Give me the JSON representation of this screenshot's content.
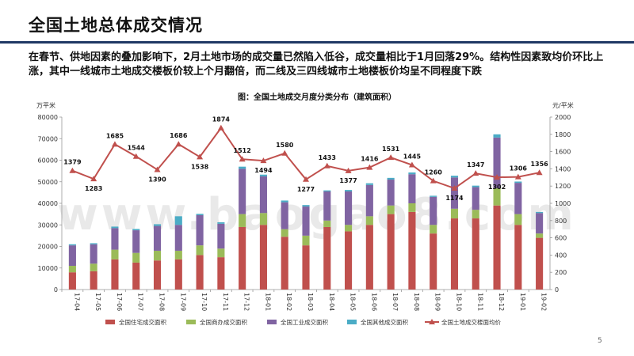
{
  "header": {
    "title": "全国土地总体成交情况",
    "subtitle": "在春节、供地因素的叠加影响下，2月土地市场的成交量已然陷入低谷，成交量相比于1月回落29%。结构性因素致均价环比上涨，其中一线城市土地成交楼板价较上个月翻倍，而二线及三四线城市土地楼板价均呈不同程度下跌"
  },
  "page_number": "5",
  "watermark": "www.baogao8.com",
  "chart_data": {
    "type": "bar",
    "stacked": true,
    "title": "图：全国土地成交月度分类分布（建筑面积）",
    "y_left_unit": "万平米",
    "y_right_unit": "元/平米",
    "y_left_range": [
      0,
      80000
    ],
    "y_left_ticks": [
      "0",
      "10000",
      "20000",
      "30000",
      "40000",
      "50000",
      "60000",
      "70000",
      "80000"
    ],
    "y_right_range": [
      0,
      2000
    ],
    "y_right_ticks": [
      "0",
      "200",
      "400",
      "600",
      "800",
      "1000",
      "1200",
      "1400",
      "1600",
      "1800",
      "2000"
    ],
    "categories": [
      "17-04",
      "17-05",
      "17-06",
      "17-07",
      "17-08",
      "17-09",
      "17-10",
      "17-11",
      "17-12",
      "18-01",
      "18-02",
      "18-03",
      "18-04",
      "18-05",
      "18-06",
      "18-07",
      "18-08",
      "18-09",
      "18-10",
      "18-11",
      "18-12",
      "19-01",
      "19-02"
    ],
    "series": [
      {
        "name": "全国住宅成交面积",
        "color": "#c0504d",
        "values": [
          8000,
          8500,
          14000,
          12500,
          13500,
          14000,
          16000,
          15000,
          29000,
          30000,
          24500,
          20500,
          29000,
          27000,
          30000,
          35000,
          36000,
          26000,
          33000,
          33000,
          39000,
          30000,
          24000
        ]
      },
      {
        "name": "全国商办成交面积",
        "color": "#9bbb59",
        "values": [
          3000,
          3500,
          4500,
          4500,
          4500,
          4000,
          4500,
          4000,
          6000,
          5500,
          3500,
          4500,
          3000,
          3000,
          4000,
          4000,
          4000,
          4000,
          4500,
          4000,
          8000,
          5000,
          2000
        ]
      },
      {
        "name": "全国工业成交面积",
        "color": "#8064a2",
        "values": [
          9500,
          9000,
          10000,
          10500,
          11500,
          12000,
          14000,
          11500,
          21000,
          17000,
          12500,
          13500,
          13500,
          15500,
          14500,
          12000,
          13500,
          13000,
          14500,
          10500,
          23500,
          14500,
          9500
        ]
      },
      {
        "name": "全国其他成交面积",
        "color": "#4bacc6",
        "values": [
          500,
          500,
          700,
          600,
          800,
          4000,
          600,
          700,
          1000,
          800,
          800,
          700,
          500,
          700,
          800,
          800,
          800,
          500,
          800,
          700,
          1500,
          600,
          500
        ]
      }
    ],
    "line_series": {
      "name": "全国土地成交楼面均价",
      "color": "#c0504d",
      "axis": "right",
      "values": [
        1379,
        1283,
        1685,
        1544,
        1390,
        1686,
        1538,
        1874,
        1512,
        1494,
        1580,
        1277,
        1433,
        1377,
        1416,
        1531,
        1445,
        1260,
        1174,
        1347,
        1302,
        1306,
        1356
      ]
    },
    "legend_position": "bottom",
    "grid": false
  }
}
